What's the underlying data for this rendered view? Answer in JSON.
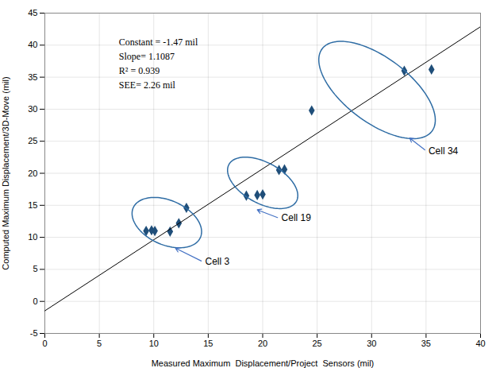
{
  "chart_data": {
    "type": "scatter",
    "xlabel": "Measured Maximum  Displacement/Project  Sensors (mil)",
    "ylabel": "Computed Maximum Displacement/3D-Move (mil)",
    "xlim": [
      0,
      40
    ],
    "ylim": [
      -5,
      45
    ],
    "xticks": [
      0,
      5,
      10,
      15,
      20,
      25,
      30,
      35,
      40
    ],
    "yticks": [
      -5,
      0,
      5,
      10,
      15,
      20,
      25,
      30,
      35,
      40,
      45
    ],
    "grid": true,
    "marker": "diamond",
    "series": [
      {
        "type": "scatter",
        "color": "#1F4E79",
        "x": [
          9.3,
          9.8,
          10.1,
          12.3,
          13.0,
          11.5
        ],
        "values": [
          11.0,
          11.1,
          11.0,
          12.2,
          14.6,
          10.9
        ]
      },
      {
        "type": "scatter",
        "color": "#1F4E79",
        "x": [
          18.5,
          19.5,
          20.0,
          22.0,
          21.5
        ],
        "values": [
          16.5,
          16.6,
          16.7,
          20.6,
          20.5
        ]
      },
      {
        "type": "scatter",
        "color": "#1F4E79",
        "x": [
          24.5,
          33.0,
          35.5
        ],
        "values": [
          29.8,
          36.0,
          36.2
        ]
      },
      {
        "type": "line",
        "color": "#000000",
        "x": [
          0,
          40
        ],
        "values": [
          -1.47,
          42.878
        ]
      }
    ],
    "ellipses": [
      {
        "center": [
          11.2,
          12.3
        ],
        "width": 5.5,
        "height": 8.5,
        "angle": 30,
        "color": "#2E6CA4"
      },
      {
        "center": [
          20.0,
          18.5
        ],
        "width": 5.0,
        "height": 9.0,
        "angle": 33,
        "color": "#2E6CA4"
      },
      {
        "center": [
          30.5,
          33.0
        ],
        "width": 7.5,
        "height": 17.0,
        "angle": 30,
        "color": "#2E6CA4"
      }
    ],
    "annotations": [
      {
        "text": "Cell 3",
        "x": 12.0,
        "y": 8.3,
        "text_x": 14.5,
        "text_y": 6.2,
        "color": "#4472C4"
      },
      {
        "text": "Cell 19",
        "x": 19.5,
        "y": 14.3,
        "text_x": 21.5,
        "text_y": 13.0,
        "color": "#4472C4"
      },
      {
        "text": "Cell 34",
        "x": 33.5,
        "y": 25.5,
        "text_x": 35.0,
        "text_y": 23.5,
        "color": "#4472C4"
      }
    ],
    "stats_text": "Constant = -1.47 mil\nSlope= 1.1087\nR² = 0.939\nSEE= 2.26 mil"
  }
}
